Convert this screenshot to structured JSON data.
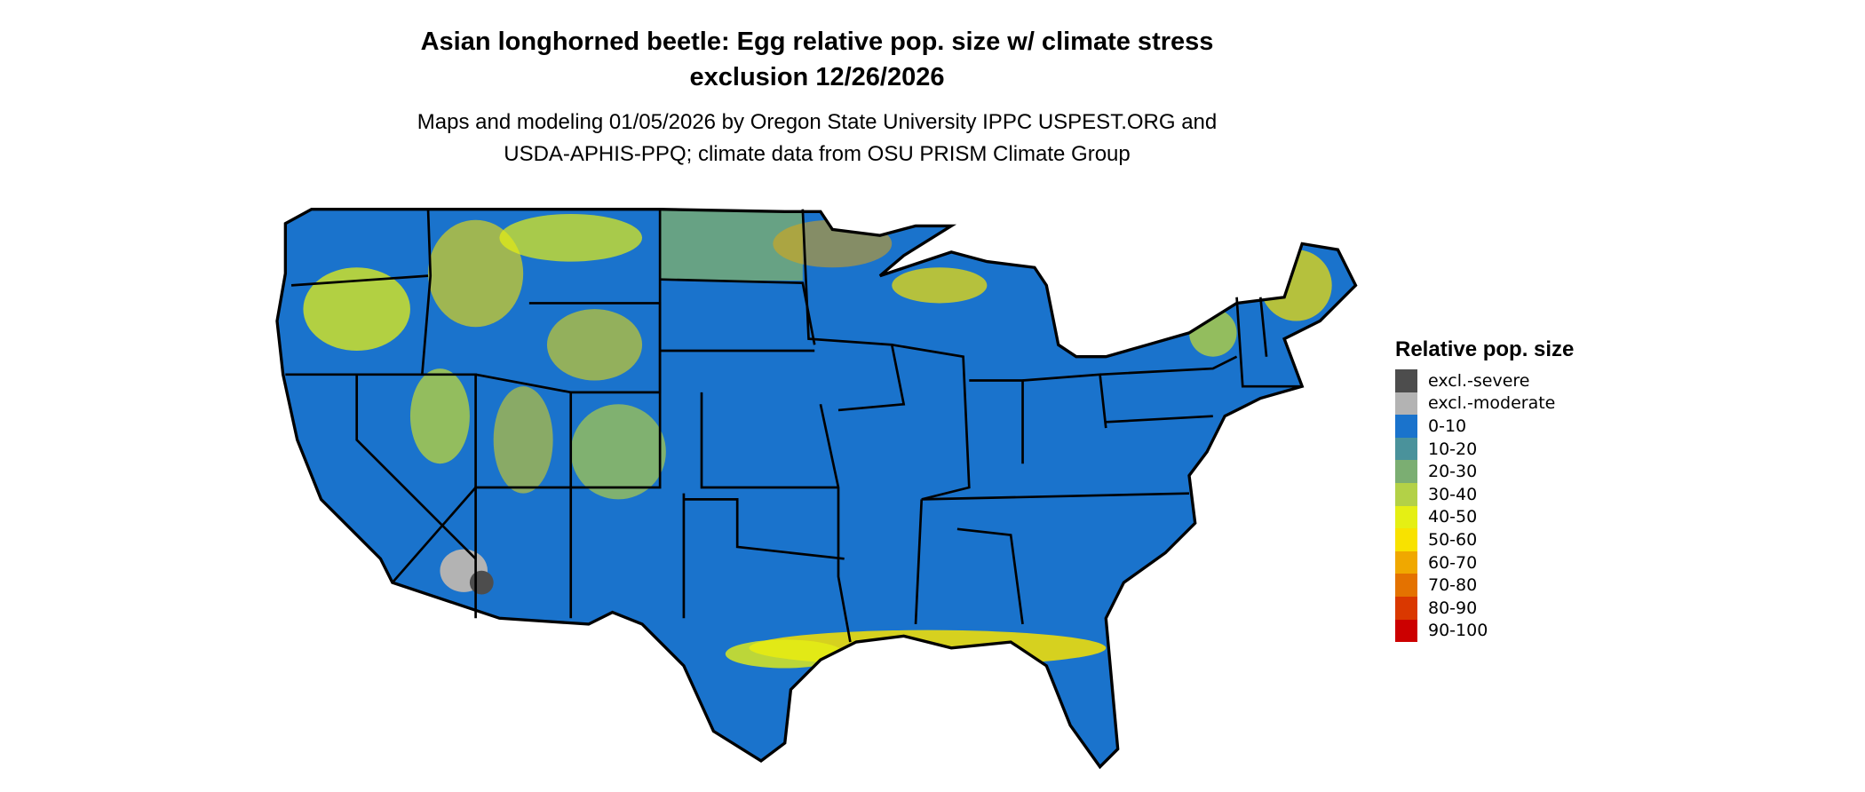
{
  "title_line1": "Asian longhorned beetle: Egg relative pop. size w/ climate stress",
  "title_line2": "exclusion 12/26/2026",
  "subtitle_line1": "Maps and modeling 01/05/2026 by Oregon State University IPPC USPEST.ORG and",
  "subtitle_line2": "USDA-APHIS-PPQ; climate data from OSU PRISM Climate Group",
  "legend": {
    "title": "Relative pop. size",
    "items": [
      {
        "label": "excl.-severe",
        "color": "#4d4d4d"
      },
      {
        "label": "excl.-moderate",
        "color": "#b3b3b3"
      },
      {
        "label": "0-10",
        "color": "#1a73cc"
      },
      {
        "label": "10-20",
        "color": "#4a929b"
      },
      {
        "label": "20-30",
        "color": "#7bae72"
      },
      {
        "label": "30-40",
        "color": "#b3d147"
      },
      {
        "label": "40-50",
        "color": "#e5ef14"
      },
      {
        "label": "50-60",
        "color": "#f8e200"
      },
      {
        "label": "60-70",
        "color": "#f0a800"
      },
      {
        "label": "70-80",
        "color": "#e47200"
      },
      {
        "label": "80-90",
        "color": "#da3800"
      },
      {
        "label": "90-100",
        "color": "#cc0000"
      }
    ]
  }
}
